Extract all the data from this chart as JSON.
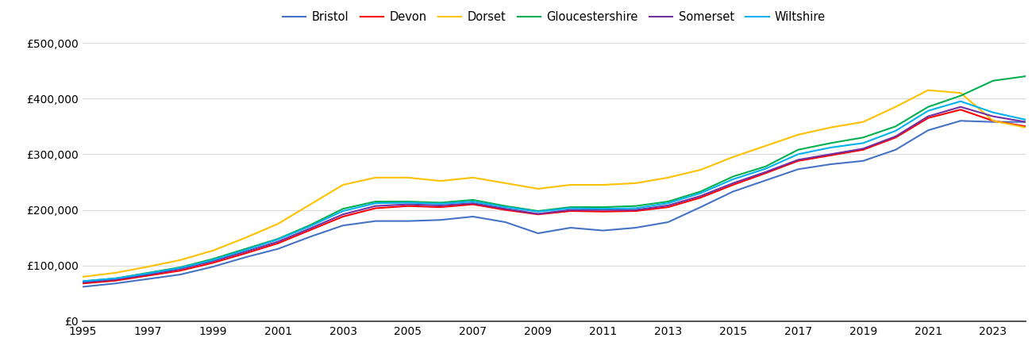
{
  "title": "",
  "years": [
    1995,
    1996,
    1997,
    1998,
    1999,
    2000,
    2001,
    2002,
    2003,
    2004,
    2005,
    2006,
    2007,
    2008,
    2009,
    2010,
    2011,
    2012,
    2013,
    2014,
    2015,
    2016,
    2017,
    2018,
    2019,
    2020,
    2021,
    2022,
    2023,
    2024
  ],
  "series": {
    "Bristol": {
      "color": "#4472C4",
      "values": [
        62000,
        68000,
        76000,
        84000,
        98000,
        115000,
        130000,
        152000,
        172000,
        180000,
        180000,
        182000,
        188000,
        178000,
        158000,
        168000,
        163000,
        168000,
        178000,
        205000,
        233000,
        253000,
        273000,
        282000,
        288000,
        308000,
        343000,
        360000,
        358000,
        358000
      ]
    },
    "Devon": {
      "color": "#FF0000",
      "values": [
        68000,
        73000,
        82000,
        91000,
        105000,
        122000,
        140000,
        164000,
        188000,
        203000,
        207000,
        205000,
        210000,
        200000,
        192000,
        198000,
        197000,
        198000,
        205000,
        222000,
        245000,
        266000,
        288000,
        298000,
        308000,
        330000,
        365000,
        380000,
        360000,
        350000
      ]
    },
    "Dorset": {
      "color": "#FFC000",
      "values": [
        80000,
        87000,
        98000,
        110000,
        127000,
        150000,
        175000,
        210000,
        245000,
        258000,
        258000,
        252000,
        258000,
        248000,
        238000,
        245000,
        245000,
        248000,
        258000,
        272000,
        295000,
        315000,
        335000,
        348000,
        358000,
        385000,
        415000,
        410000,
        360000,
        348000
      ]
    },
    "Gloucestershire": {
      "color": "#00B050",
      "values": [
        72000,
        77000,
        87000,
        97000,
        112000,
        130000,
        148000,
        173000,
        202000,
        215000,
        215000,
        213000,
        218000,
        207000,
        198000,
        205000,
        205000,
        207000,
        215000,
        233000,
        260000,
        278000,
        308000,
        320000,
        330000,
        350000,
        385000,
        405000,
        432000,
        440000
      ]
    },
    "Somerset": {
      "color": "#7030A0",
      "values": [
        70000,
        75000,
        84000,
        94000,
        108000,
        125000,
        143000,
        167000,
        192000,
        207000,
        210000,
        208000,
        212000,
        202000,
        193000,
        200000,
        200000,
        200000,
        208000,
        225000,
        248000,
        268000,
        290000,
        300000,
        310000,
        332000,
        368000,
        385000,
        368000,
        358000
      ]
    },
    "Wiltshire": {
      "color": "#00B0F0",
      "values": [
        72000,
        77000,
        86000,
        96000,
        110000,
        128000,
        147000,
        171000,
        198000,
        212000,
        213000,
        211000,
        215000,
        205000,
        197000,
        203000,
        202000,
        203000,
        212000,
        230000,
        255000,
        274000,
        300000,
        312000,
        320000,
        342000,
        378000,
        395000,
        375000,
        362000
      ]
    }
  },
  "ylim": [
    0,
    500000
  ],
  "ytick_step": 100000,
  "background_color": "#ffffff",
  "grid_color": "#d9d9d9",
  "legend_ncol": 6,
  "tick_fontsize": 10,
  "legend_fontsize": 10.5
}
